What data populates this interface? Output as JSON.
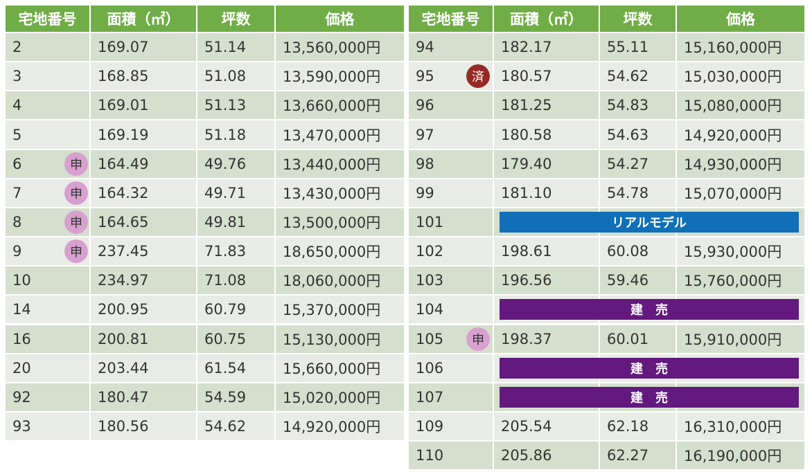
{
  "tables": [
    {
      "headers": [
        "宅地番号",
        "面積（㎡）",
        "坪数",
        "価格"
      ],
      "rows": [
        {
          "lot": "2",
          "area": "169.07",
          "tsubo": "51.14",
          "price": "13,560,000円"
        },
        {
          "lot": "3",
          "area": "168.85",
          "tsubo": "51.08",
          "price": "13,590,000円"
        },
        {
          "lot": "4",
          "area": "169.01",
          "tsubo": "51.13",
          "price": "13,660,000円"
        },
        {
          "lot": "5",
          "area": "169.19",
          "tsubo": "51.18",
          "price": "13,470,000円"
        },
        {
          "lot": "6",
          "badge": "申",
          "area": "164.49",
          "tsubo": "49.76",
          "price": "13,440,000円"
        },
        {
          "lot": "7",
          "badge": "申",
          "area": "164.32",
          "tsubo": "49.71",
          "price": "13,430,000円"
        },
        {
          "lot": "8",
          "badge": "申",
          "area": "164.65",
          "tsubo": "49.81",
          "price": "13,500,000円"
        },
        {
          "lot": "9",
          "badge": "申",
          "area": "237.45",
          "tsubo": "71.83",
          "price": "18,650,000円"
        },
        {
          "lot": "10",
          "area": "234.97",
          "tsubo": "71.08",
          "price": "18,060,000円"
        },
        {
          "lot": "14",
          "area": "200.95",
          "tsubo": "60.79",
          "price": "15,370,000円"
        },
        {
          "lot": "16",
          "area": "200.81",
          "tsubo": "60.75",
          "price": "15,130,000円"
        },
        {
          "lot": "20",
          "area": "203.44",
          "tsubo": "61.54",
          "price": "15,660,000円"
        },
        {
          "lot": "92",
          "area": "180.47",
          "tsubo": "54.59",
          "price": "15,020,000円"
        },
        {
          "lot": "93",
          "area": "180.56",
          "tsubo": "54.62",
          "price": "14,920,000円"
        }
      ]
    },
    {
      "headers": [
        "宅地番号",
        "面積（㎡）",
        "坪数",
        "価格"
      ],
      "rows": [
        {
          "lot": "94",
          "area": "182.17",
          "tsubo": "55.11",
          "price": "15,160,000円"
        },
        {
          "lot": "95",
          "badge": "済",
          "area": "180.57",
          "tsubo": "54.62",
          "price": "15,030,000円"
        },
        {
          "lot": "96",
          "area": "181.25",
          "tsubo": "54.83",
          "price": "15,080,000円"
        },
        {
          "lot": "97",
          "area": "180.58",
          "tsubo": "54.63",
          "price": "14,920,000円"
        },
        {
          "lot": "98",
          "area": "179.40",
          "tsubo": "54.27",
          "price": "14,930,000円"
        },
        {
          "lot": "99",
          "area": "181.10",
          "tsubo": "54.78",
          "price": "15,070,000円"
        },
        {
          "lot": "101",
          "banner": "リアルモデル"
        },
        {
          "lot": "102",
          "area": "198.61",
          "tsubo": "60.08",
          "price": "15,930,000円"
        },
        {
          "lot": "103",
          "area": "196.56",
          "tsubo": "59.46",
          "price": "15,760,000円"
        },
        {
          "lot": "104",
          "banner": "建　売"
        },
        {
          "lot": "105",
          "badge": "申",
          "area": "198.37",
          "tsubo": "60.01",
          "price": "15,910,000円"
        },
        {
          "lot": "106",
          "banner": "建　売"
        },
        {
          "lot": "107",
          "banner": "建　売"
        },
        {
          "lot": "109",
          "area": "205.54",
          "tsubo": "62.18",
          "price": "16,310,000円"
        },
        {
          "lot": "110",
          "area": "205.86",
          "tsubo": "62.27",
          "price": "16,190,000円"
        }
      ]
    }
  ]
}
